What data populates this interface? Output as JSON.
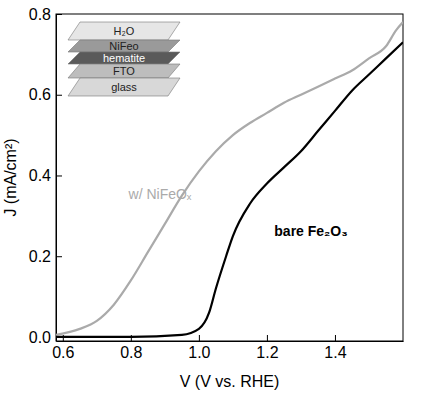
{
  "chart_data": {
    "type": "line",
    "x_label": "V (V vs. RHE)",
    "y_label": "J (mA/cm²)",
    "xlim": [
      0.58,
      1.6
    ],
    "ylim": [
      -0.01,
      0.8
    ],
    "xticks": [
      0.6,
      0.8,
      {
        "value": 1,
        "label": "1.0"
      },
      1.2,
      1.4
    ],
    "yticks": [
      {
        "value": 0,
        "label": "0.0"
      },
      0.2,
      0.4,
      0.6,
      0.8
    ],
    "annotations": [
      "H₂O",
      "NiFeo",
      "hematite",
      "FTO",
      "glass"
    ],
    "series": [
      {
        "name": "w/ NiFeOₓ",
        "color": "#aaaaaa",
        "x": [
          0.58,
          0.65,
          0.7,
          0.75,
          0.8,
          0.85,
          0.9,
          0.95,
          1.0,
          1.05,
          1.1,
          1.15,
          1.2,
          1.25,
          1.3,
          1.35,
          1.4,
          1.45,
          1.5,
          1.55,
          1.58,
          1.6
        ],
        "values": [
          0.005,
          0.02,
          0.04,
          0.08,
          0.14,
          0.21,
          0.28,
          0.35,
          0.41,
          0.46,
          0.5,
          0.53,
          0.555,
          0.58,
          0.6,
          0.62,
          0.64,
          0.66,
          0.69,
          0.72,
          0.76,
          0.78
        ]
      },
      {
        "name": "bare Fe₂O₃",
        "color": "#000000",
        "x": [
          0.58,
          0.8,
          0.95,
          1.0,
          1.03,
          1.05,
          1.08,
          1.1,
          1.15,
          1.2,
          1.25,
          1.3,
          1.35,
          1.4,
          1.45,
          1.5,
          1.55,
          1.6
        ],
        "values": [
          0.0,
          0.0,
          0.005,
          0.02,
          0.06,
          0.12,
          0.2,
          0.25,
          0.33,
          0.38,
          0.42,
          0.46,
          0.51,
          0.56,
          0.61,
          0.65,
          0.69,
          0.73
        ]
      }
    ]
  }
}
